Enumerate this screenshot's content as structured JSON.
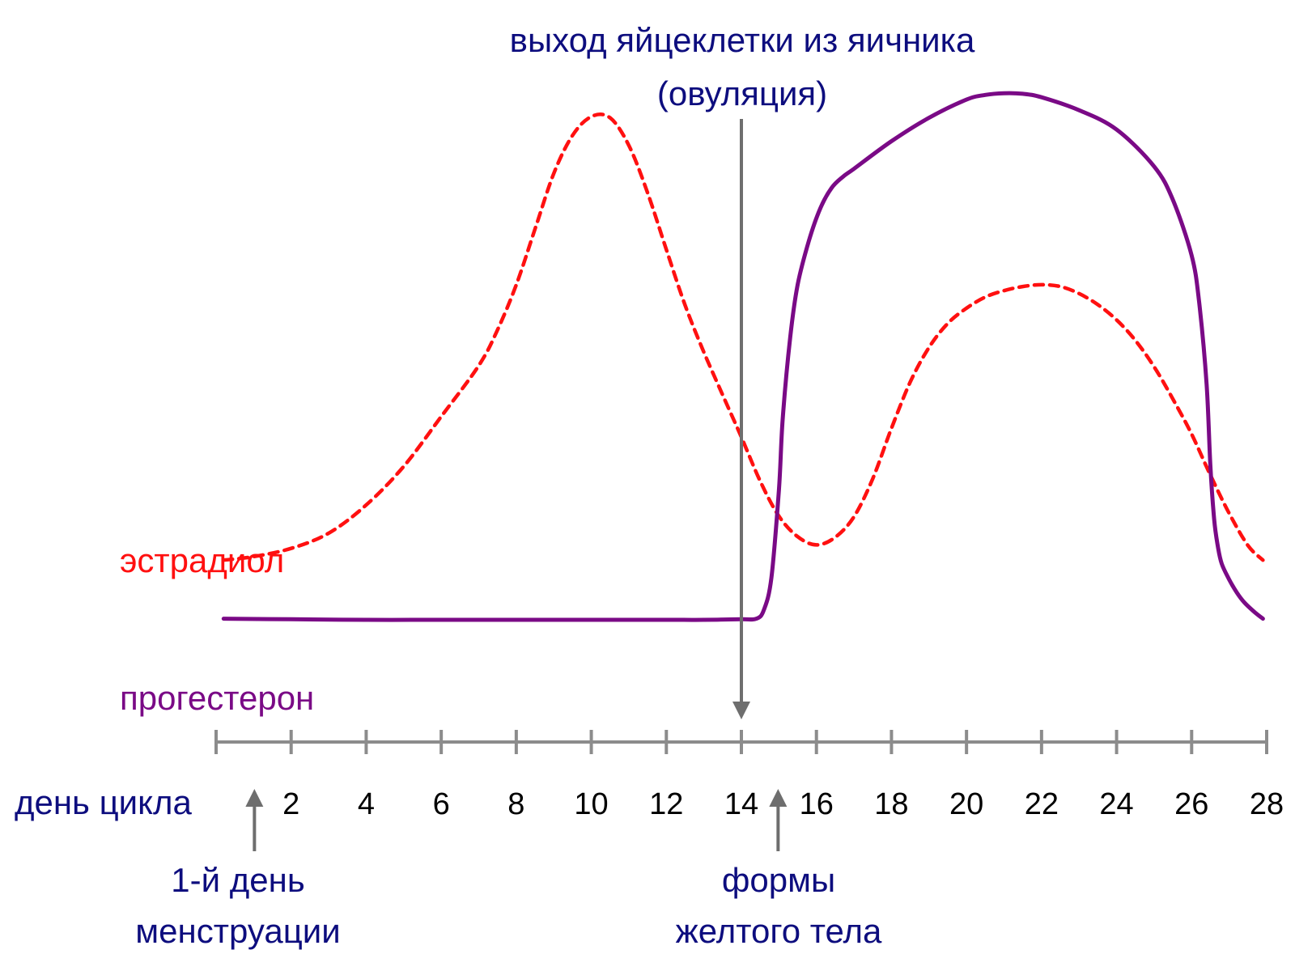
{
  "colors": {
    "navy": "#0d0d7e",
    "estradiol": "#ff1010",
    "progesterone": "#7a0a86",
    "axis": "#8c8c8c",
    "arrow": "#6e6e6e",
    "tick_text": "#000000"
  },
  "annotations": {
    "ovulation_line1": "выход яйцеклетки из яичника",
    "ovulation_line2": "(овуляция)",
    "menstruation_line1": "1-й день",
    "menstruation_line2": "менструации",
    "corpus_line1": "формы",
    "corpus_line2": "желтого тела"
  },
  "chart_data": {
    "type": "line",
    "xlabel": "день цикла",
    "ylabel": "",
    "xlim": [
      0,
      28
    ],
    "ylim": [
      0,
      100
    ],
    "x_ticks": [
      2,
      4,
      6,
      8,
      10,
      12,
      14,
      16,
      18,
      20,
      22,
      24,
      26,
      28
    ],
    "grid": false,
    "markers": [
      {
        "name": "ovulation",
        "x": 14
      },
      {
        "name": "menstruation",
        "x": 1
      },
      {
        "name": "corpus_luteum",
        "x": 15
      }
    ],
    "series": [
      {
        "name": "эстрадиол",
        "style": "dashed",
        "x": [
          0.2,
          1,
          2,
          3,
          4,
          5,
          6,
          7,
          7.5,
          8,
          8.5,
          9,
          9.5,
          10,
          10.5,
          11,
          11.5,
          12,
          12.5,
          13,
          13.5,
          14,
          14.5,
          15,
          15.5,
          16,
          16.5,
          17,
          17.5,
          18,
          18.5,
          19,
          19.5,
          20,
          20.5,
          21,
          21.5,
          22,
          22.5,
          23,
          23.5,
          24,
          24.5,
          25,
          25.5,
          26,
          26.5,
          27,
          27.5,
          27.9
        ],
        "y": [
          20,
          20.6,
          22,
          24.6,
          29.4,
          36,
          44.5,
          53.2,
          59.3,
          67,
          76.5,
          86,
          92.5,
          95.7,
          95.5,
          90.8,
          82.7,
          73,
          63.5,
          55.5,
          48.2,
          41,
          33.5,
          27.5,
          24,
          22.6,
          23.9,
          27.4,
          33.9,
          42.5,
          50.4,
          56.3,
          60.4,
          63,
          64.9,
          66,
          66.7,
          67,
          66.7,
          65.5,
          63.6,
          61,
          57.5,
          53,
          47.5,
          41.5,
          34.5,
          28,
          22.5,
          20
        ]
      },
      {
        "name": "прогестерон",
        "style": "solid",
        "x": [
          0.2,
          2,
          4,
          6,
          8,
          10,
          12,
          13,
          14,
          14.4,
          14.6,
          14.8,
          15,
          15.1,
          15.3,
          15.5,
          15.8,
          16.1,
          16.4,
          16.7,
          17,
          18,
          19,
          20,
          20.5,
          21,
          21.5,
          22,
          23,
          24,
          25,
          25.5,
          26,
          26.2,
          26.4,
          26.5,
          26.6,
          26.7,
          26.8,
          27,
          27.2,
          27.4,
          27.7,
          27.9
        ],
        "y": [
          10,
          9.9,
          9.8,
          9.8,
          9.8,
          9.8,
          9.8,
          9.8,
          9.9,
          10,
          11.5,
          17,
          32,
          44,
          58,
          67,
          74.5,
          80,
          83.5,
          85.4,
          86.8,
          91.5,
          95.5,
          98.6,
          99.4,
          99.7,
          99.6,
          99,
          96.8,
          93.5,
          87.2,
          81.5,
          72,
          64,
          50,
          36,
          27,
          22.3,
          19.4,
          16.7,
          14.5,
          12.8,
          11,
          10
        ]
      }
    ]
  }
}
